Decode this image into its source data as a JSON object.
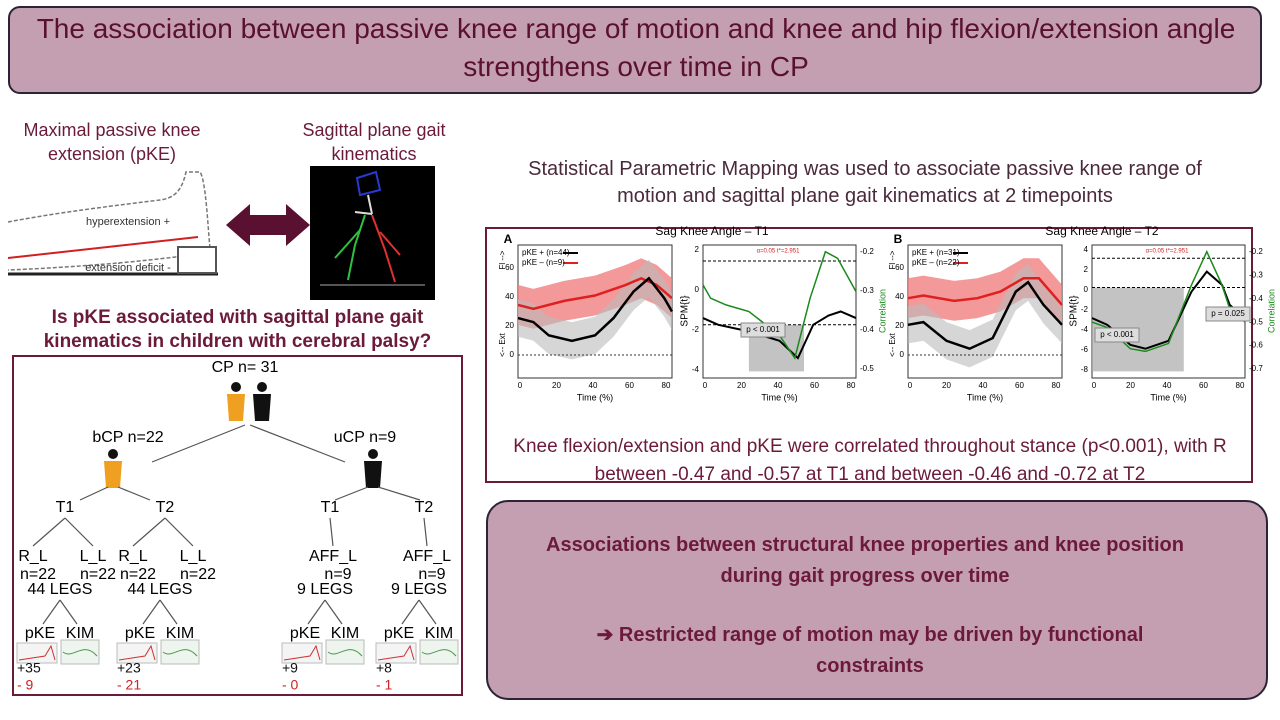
{
  "header": {
    "title": "The association between passive knee range of motion and knee and hip flexion/extension angle strengthens over time in CP"
  },
  "left": {
    "pke_label": "Maximal passive knee extension (pKE)",
    "hyperextension": "hyperextension +",
    "extension_deficit": "extension deficit -",
    "kinematics_label": "Sagittal plane gait kinematics",
    "question": "Is pKE associated with sagittal plane gait kinematics in children with cerebral palsy?"
  },
  "tree": {
    "root": "CP n= 31",
    "groups": [
      "bCP n=22",
      "uCP n=9"
    ],
    "branches": [
      {
        "t": "T1",
        "legs": [
          "R_L",
          "L_L"
        ],
        "n": [
          "n=22",
          "n=22"
        ],
        "total": "44 LEGS",
        "measures": [
          "pKE",
          "KIM"
        ],
        "plus": "+35",
        "minus": "- 9"
      },
      {
        "t": "T2",
        "legs": [
          "R_L",
          "L_L"
        ],
        "n": [
          "n=22",
          "n=22"
        ],
        "total": "44 LEGS",
        "measures": [
          "pKE",
          "KIM"
        ],
        "plus": "+23",
        "minus": "- 21"
      },
      {
        "t": "T1",
        "legs": [
          "AFF_L"
        ],
        "n": [
          "n=9"
        ],
        "total": "9 LEGS",
        "measures": [
          "pKE",
          "KIM"
        ],
        "plus": "+9",
        "minus": "- 0"
      },
      {
        "t": "T2",
        "legs": [
          "AFF_L"
        ],
        "n": [
          "n=9"
        ],
        "total": "9 LEGS",
        "measures": [
          "pKE",
          "KIM"
        ],
        "plus": "+8",
        "minus": "- 1"
      }
    ]
  },
  "methods": {
    "text": "Statistical Parametric Mapping was used to associate passive knee range of motion and sagittal plane gait kinematics at 2 timepoints"
  },
  "figure": {
    "panels": [
      {
        "letter": "A",
        "title": "Sag Knee Angle – T1",
        "legend": [
          "pKE + (n=44)",
          "pKE – (n=9)"
        ],
        "flex_label": "Fl -->",
        "ext_label": "<-- Ext",
        "kin_yticks": [
          "60",
          "40",
          "20",
          "0"
        ],
        "xticks": [
          "0",
          "20",
          "40",
          "60",
          "80"
        ],
        "xlabel": "Time (%)",
        "spm_label": "SPM{t}",
        "spm_yticks": [
          "2",
          "0",
          "-2",
          "-4"
        ],
        "corr_label": "Correlation",
        "corr_ticks": [
          "-0.2",
          "-0.3",
          "-0.4",
          "-0.5"
        ],
        "threshold": "α=0.05  t*=2.951",
        "p_labels": [
          "p < 0.001"
        ]
      },
      {
        "letter": "B",
        "title": "Sag Knee Angle – T2",
        "legend": [
          "pKE + (n=31)",
          "pKE – (n=22)"
        ],
        "flex_label": "Fl -->",
        "ext_label": "<-- Ext",
        "kin_yticks": [
          "60",
          "40",
          "20",
          "0"
        ],
        "xticks": [
          "0",
          "20",
          "40",
          "60",
          "80"
        ],
        "xlabel": "Time (%)",
        "spm_label": "SPM{t}",
        "spm_yticks": [
          "4",
          "2",
          "0",
          "-2",
          "-4",
          "-6",
          "-8"
        ],
        "corr_label": "Correlation",
        "corr_ticks": [
          "-0.2",
          "-0.3",
          "-0.4",
          "-0.5",
          "-0.6",
          "-0.7"
        ],
        "threshold": "α=0.05  t*=2.951",
        "p_labels": [
          "p < 0.001",
          "p = 0.025"
        ]
      }
    ],
    "caption": "Knee flexion/extension and pKE were correlated throughout stance (p<0.001), with R between -0.47 and -0.57  at T1 and between -0.46 and -0.72 at T2"
  },
  "conclusion": {
    "finding": "Associations between structural knee properties and knee position during gait progress over time",
    "implication": "➔ Restricted range of motion may be driven by functional constraints"
  }
}
